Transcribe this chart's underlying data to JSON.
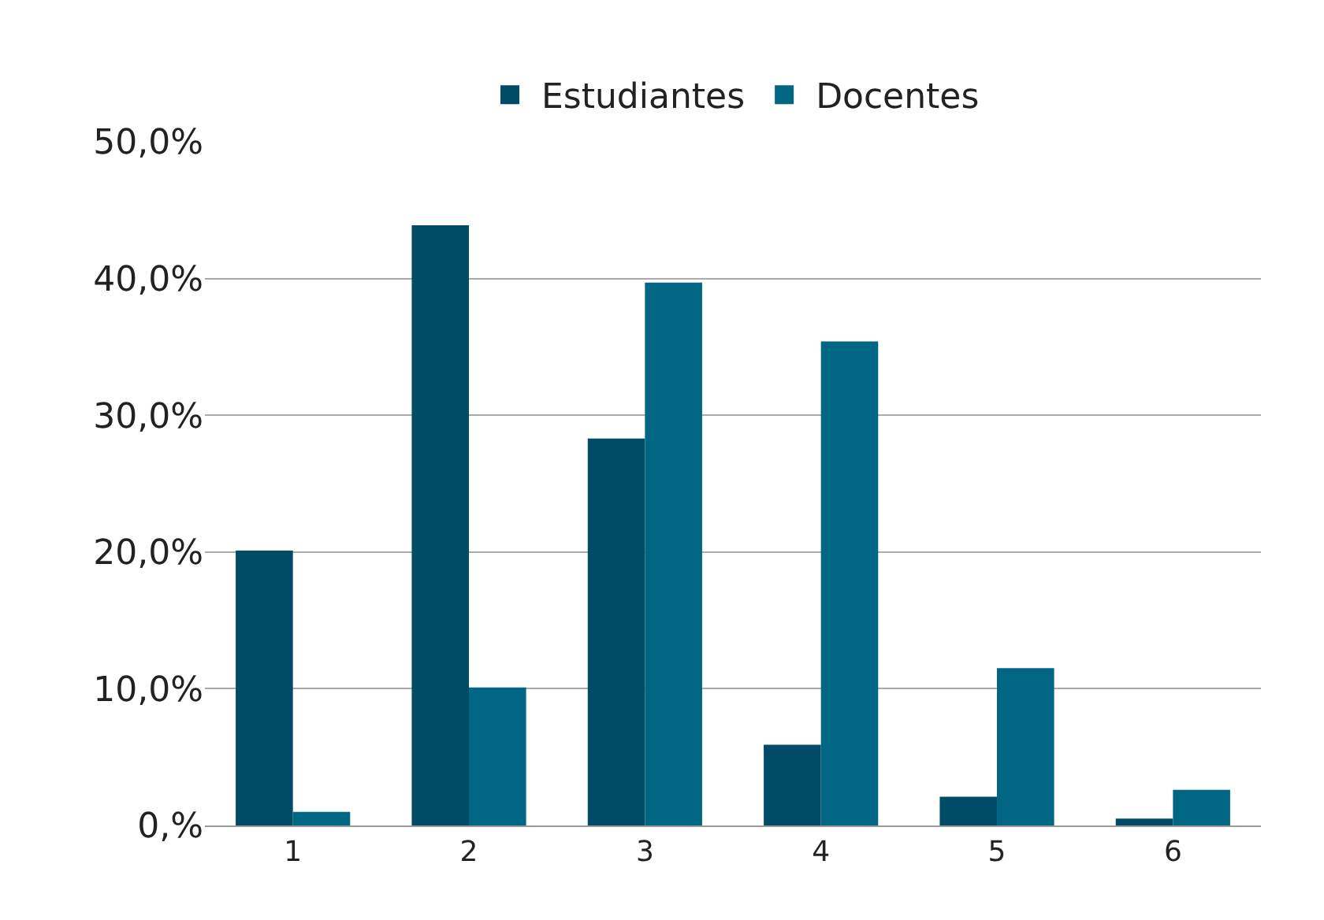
{
  "chart_data": {
    "type": "bar",
    "categories": [
      "1",
      "2",
      "3",
      "4",
      "5",
      "6"
    ],
    "series": [
      {
        "name": "Estudiantes",
        "color": "#004b66",
        "values": [
          20.1,
          43.9,
          28.3,
          5.9,
          2.1,
          0.5
        ]
      },
      {
        "name": "Docentes",
        "color": "#006684",
        "values": [
          1.0,
          10.1,
          39.7,
          35.4,
          11.5,
          2.6
        ]
      }
    ],
    "ylim": [
      0,
      50
    ],
    "yticks": [
      {
        "value": 0,
        "label": "0,%"
      },
      {
        "value": 10,
        "label": "10,0%"
      },
      {
        "value": 20,
        "label": "20,0%"
      },
      {
        "value": 30,
        "label": "30,0%"
      },
      {
        "value": 40,
        "label": "40,0%"
      },
      {
        "value": 50,
        "label": "50,0%"
      }
    ],
    "grid": "y",
    "legend": "top"
  }
}
